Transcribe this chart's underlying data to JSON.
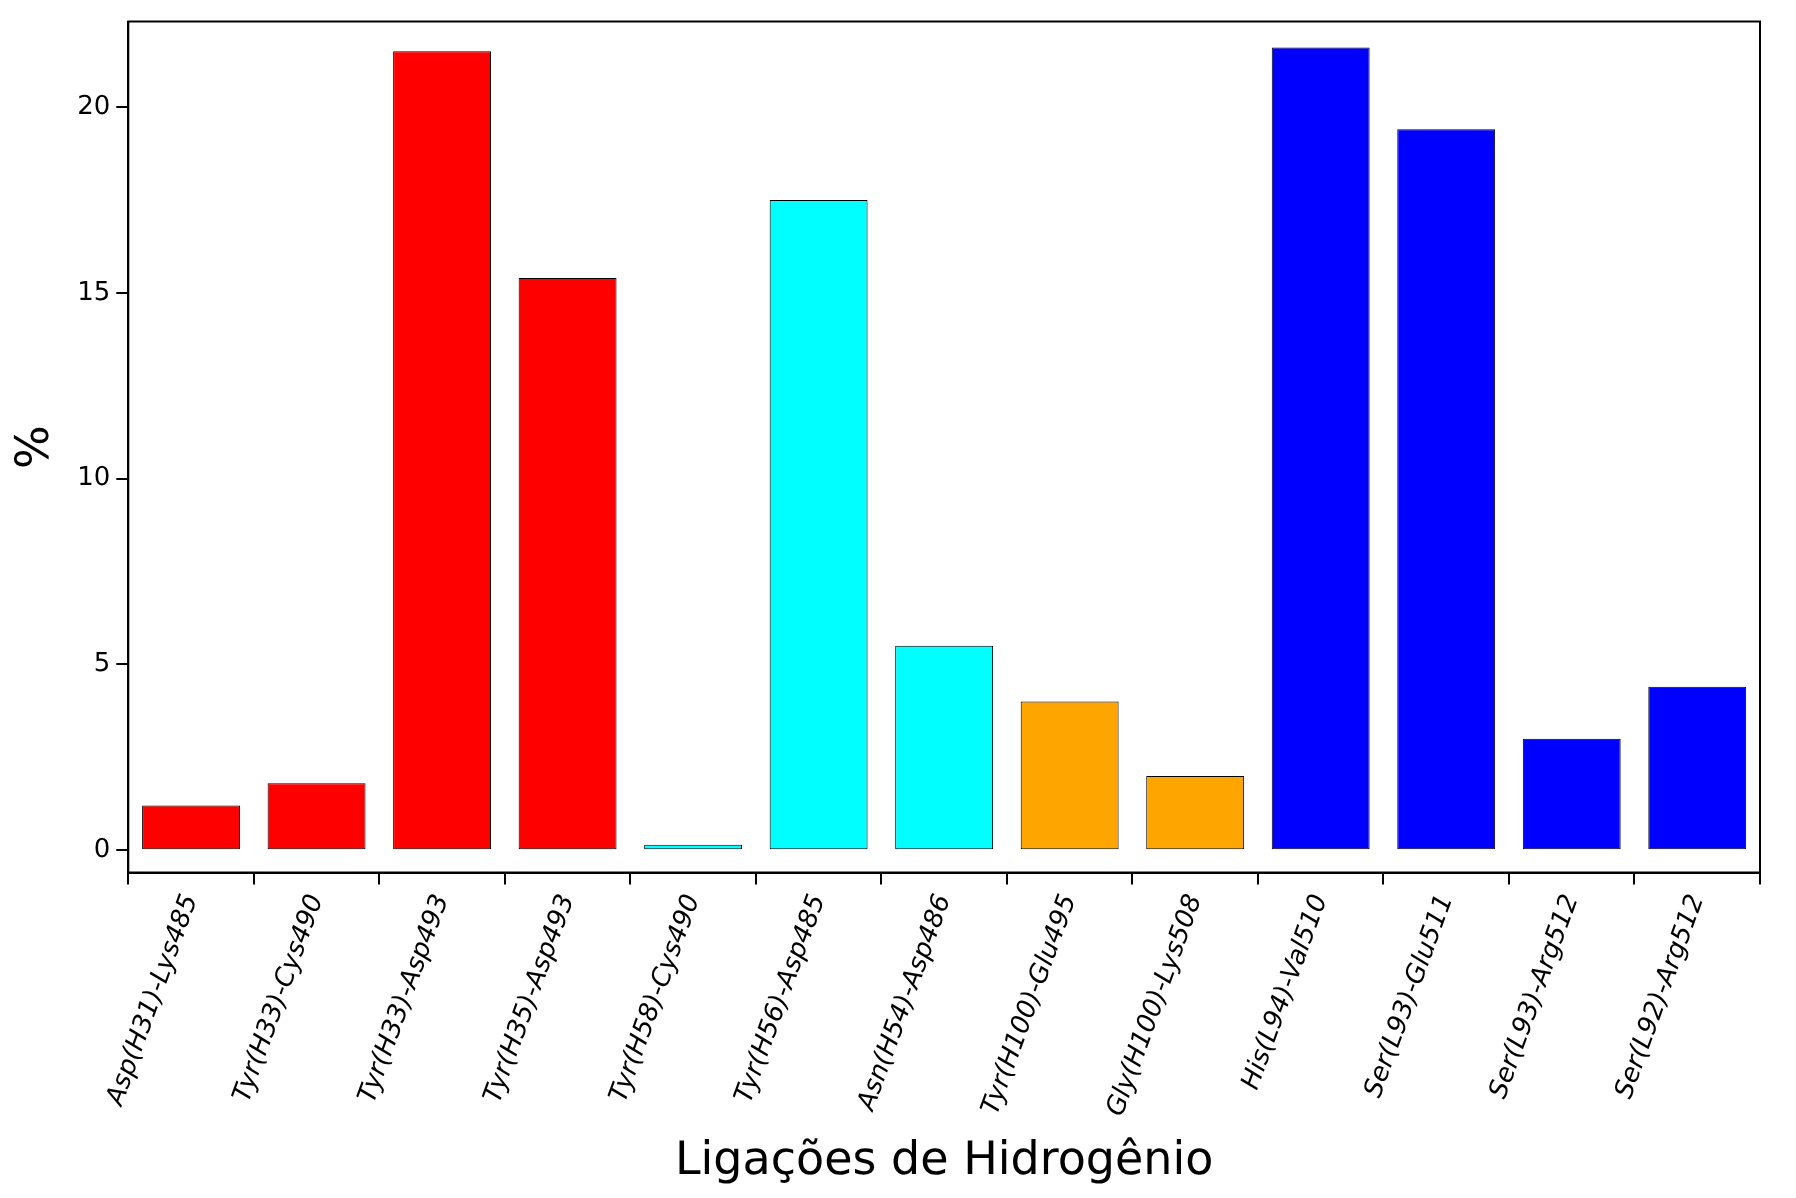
{
  "chart_data": {
    "type": "bar",
    "xlabel": "Ligações de Hidrogênio",
    "ylabel": "%",
    "categories": [
      "Asp(H31)-Lys485",
      "Tyr(H33)-Cys490",
      "Tyr(H33)-Asp493",
      "Tyr(H35)-Asp493",
      "Tyr(H58)-Cys490",
      "Tyr(H56)-Asp485",
      "Asn(H54)-Asp486",
      "Tyr(H100)-Glu495",
      "Gly(H100)-Lys508",
      "His(L94)-Val510",
      "Ser(L93)-Glu511",
      "Ser(L93)-Arg512",
      "Ser(L92)-Arg512"
    ],
    "values": [
      1.2,
      1.8,
      21.5,
      15.4,
      0.15,
      17.5,
      5.5,
      4.0,
      2.0,
      21.6,
      19.4,
      3.0,
      4.4
    ],
    "colors": [
      "#ff0000",
      "#ff0000",
      "#ff0000",
      "#ff0000",
      "#00ffff",
      "#00ffff",
      "#00ffff",
      "#ffa500",
      "#ffa500",
      "#0000ff",
      "#0000ff",
      "#0000ff",
      "#0000ff"
    ],
    "ylim": [
      -0.6,
      22.3
    ],
    "yticks": [
      0,
      5,
      10,
      15,
      20
    ],
    "grid": false,
    "legend": false
  }
}
